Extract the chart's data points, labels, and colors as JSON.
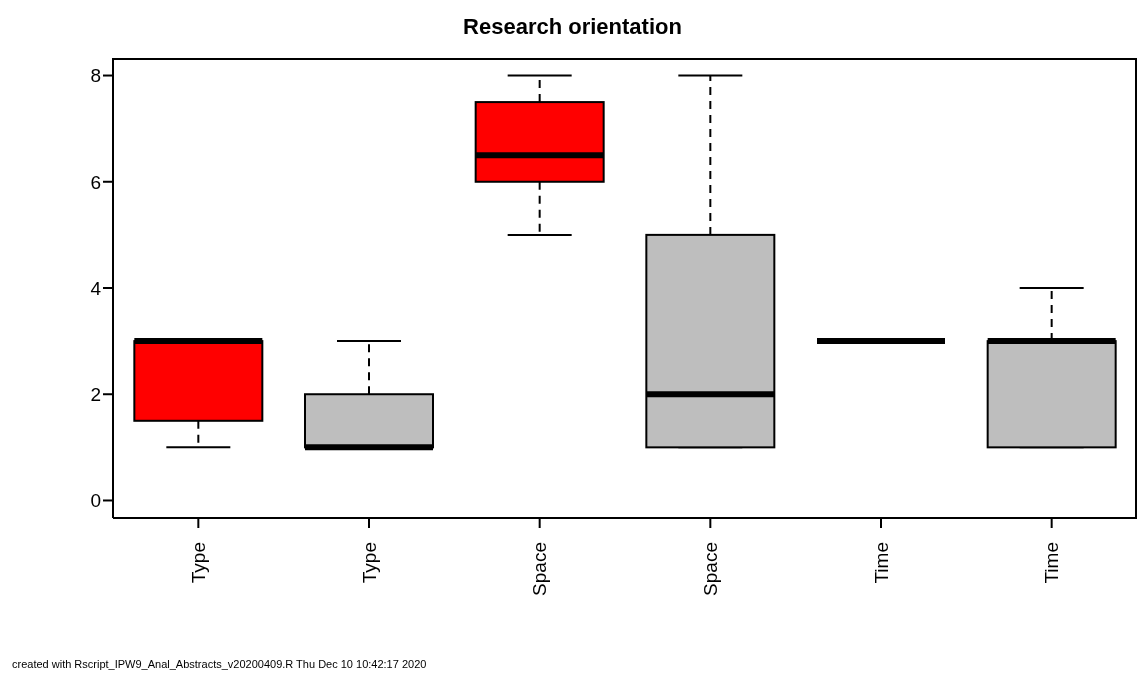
{
  "chart_data": {
    "type": "box",
    "title": "Research orientation",
    "categories": [
      "Type",
      "Type",
      "Space",
      "Space",
      "Time",
      "Time"
    ],
    "colors": [
      "#ff0000",
      "#bebebe",
      "#ff0000",
      "#bebebe",
      null,
      "#bebebe"
    ],
    "boxes": [
      {
        "low": 1,
        "q1": 1.5,
        "median": 3,
        "q3": 3,
        "high": 3
      },
      {
        "low": 1,
        "q1": 1,
        "median": 1,
        "q3": 2,
        "high": 3
      },
      {
        "low": 5,
        "q1": 6,
        "median": 6.5,
        "q3": 7.5,
        "high": 8
      },
      {
        "low": 1,
        "q1": 1,
        "median": 2,
        "q3": 5,
        "high": 8
      },
      {
        "low": 3,
        "q1": 3,
        "median": 3,
        "q3": 3,
        "high": 3
      },
      {
        "low": 1,
        "q1": 1,
        "median": 3,
        "q3": 3,
        "high": 4
      }
    ],
    "ylim": [
      -0.33,
      8.33
    ],
    "yticks": [
      0,
      2,
      4,
      6,
      8
    ],
    "grid": false,
    "annotations": [
      "created with Rscript_IPW9_Anal_Abstracts_v20200409.R Thu Dec 10 10:42:17 2020"
    ]
  }
}
